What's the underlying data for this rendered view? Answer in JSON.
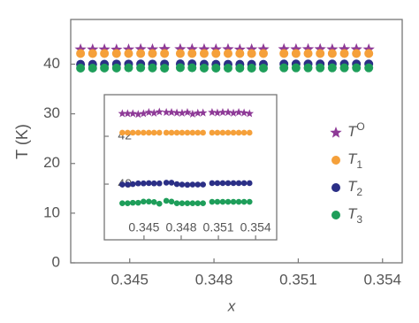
{
  "chart_data": [
    {
      "type": "scatter",
      "y_label": "T (K)",
      "x_label": "x",
      "x": [
        0.34325,
        0.34368,
        0.3441,
        0.34453,
        0.34496,
        0.34539,
        0.34581,
        0.34624,
        0.3468,
        0.34722,
        0.34765,
        0.34807,
        0.3485,
        0.34892,
        0.34934,
        0.34976,
        0.35049,
        0.35092,
        0.35135,
        0.35178,
        0.35221,
        0.35264,
        0.35307,
        0.35351
      ],
      "xlim": [
        0.3429,
        0.3547
      ],
      "ylim": [
        0,
        49
      ],
      "xticks": [
        0.345,
        0.348,
        0.351,
        0.354
      ],
      "yticks": [
        0,
        10,
        20,
        30,
        40
      ],
      "series": [
        {
          "name": "TO",
          "color": "#8e3a97",
          "marker": "star",
          "values": [
            42.95,
            42.95,
            42.95,
            42.92,
            42.95,
            43.0,
            42.97,
            43.02,
            43.0,
            43.0,
            42.98,
            42.97,
            43.0,
            42.93,
            42.97,
            42.98,
            43.0,
            42.98,
            43.0,
            43.0,
            42.97,
            43.0,
            42.98,
            42.95
          ]
        },
        {
          "name": "T1",
          "color": "#f5a03a",
          "marker": "circle",
          "values": [
            42.15,
            42.15,
            42.15,
            42.15,
            42.15,
            42.15,
            42.15,
            42.15,
            42.15,
            42.15,
            42.15,
            42.15,
            42.15,
            42.15,
            42.15,
            42.15,
            42.15,
            42.15,
            42.15,
            42.15,
            42.15,
            42.15,
            42.15,
            42.15
          ]
        },
        {
          "name": "T2",
          "color": "#2b2f86",
          "marker": "circle",
          "values": [
            39.98,
            39.98,
            40.0,
            40.03,
            40.03,
            40.04,
            40.03,
            40.03,
            40.06,
            40.06,
            40.0,
            39.98,
            39.97,
            39.98,
            39.98,
            39.98,
            40.04,
            40.04,
            40.04,
            40.04,
            40.04,
            40.04,
            40.04,
            40.04
          ]
        },
        {
          "name": "T3",
          "color": "#1e9e5a",
          "marker": "circle",
          "values": [
            39.2,
            39.2,
            39.22,
            39.22,
            39.27,
            39.27,
            39.25,
            39.18,
            39.3,
            39.27,
            39.2,
            39.2,
            39.2,
            39.2,
            39.2,
            39.2,
            39.26,
            39.26,
            39.26,
            39.26,
            39.26,
            39.26,
            39.26,
            39.26
          ]
        }
      ]
    },
    {
      "type": "scatter",
      "x": [
        0.34325,
        0.34368,
        0.3441,
        0.34453,
        0.34496,
        0.34539,
        0.34581,
        0.34624,
        0.3468,
        0.34722,
        0.34765,
        0.34807,
        0.3485,
        0.34892,
        0.34934,
        0.34976,
        0.35049,
        0.35092,
        0.35135,
        0.35178,
        0.35221,
        0.35264,
        0.35307,
        0.35351
      ],
      "xlim": [
        0.3418,
        0.3557
      ],
      "ylim": [
        37.67,
        43.74
      ],
      "xticks": [
        0.345,
        0.348,
        0.351,
        0.354
      ],
      "yticks": [
        40,
        42
      ],
      "series": [
        {
          "color": "#8e3a97",
          "marker": "star",
          "values": [
            42.95,
            42.95,
            42.95,
            42.92,
            42.95,
            43.0,
            42.97,
            43.02,
            43.0,
            43.0,
            42.98,
            42.97,
            43.0,
            42.93,
            42.97,
            42.98,
            43.0,
            42.98,
            43.0,
            43.0,
            42.97,
            43.0,
            42.98,
            42.95
          ]
        },
        {
          "color": "#f5a03a",
          "marker": "circle",
          "values": [
            42.15,
            42.15,
            42.15,
            42.15,
            42.15,
            42.15,
            42.15,
            42.15,
            42.15,
            42.15,
            42.15,
            42.15,
            42.15,
            42.15,
            42.15,
            42.15,
            42.15,
            42.15,
            42.15,
            42.15,
            42.15,
            42.15,
            42.15,
            42.15
          ]
        },
        {
          "color": "#2b2f86",
          "marker": "circle",
          "values": [
            39.98,
            39.98,
            40.0,
            40.03,
            40.03,
            40.04,
            40.03,
            40.03,
            40.06,
            40.06,
            40.0,
            39.98,
            39.97,
            39.98,
            39.98,
            39.98,
            40.04,
            40.04,
            40.04,
            40.04,
            40.04,
            40.04,
            40.04,
            40.04
          ]
        },
        {
          "color": "#1e9e5a",
          "marker": "circle",
          "values": [
            39.2,
            39.2,
            39.22,
            39.22,
            39.27,
            39.27,
            39.25,
            39.18,
            39.3,
            39.27,
            39.2,
            39.2,
            39.2,
            39.2,
            39.2,
            39.2,
            39.26,
            39.26,
            39.26,
            39.26,
            39.26,
            39.26,
            39.26,
            39.26
          ]
        }
      ]
    }
  ]
}
